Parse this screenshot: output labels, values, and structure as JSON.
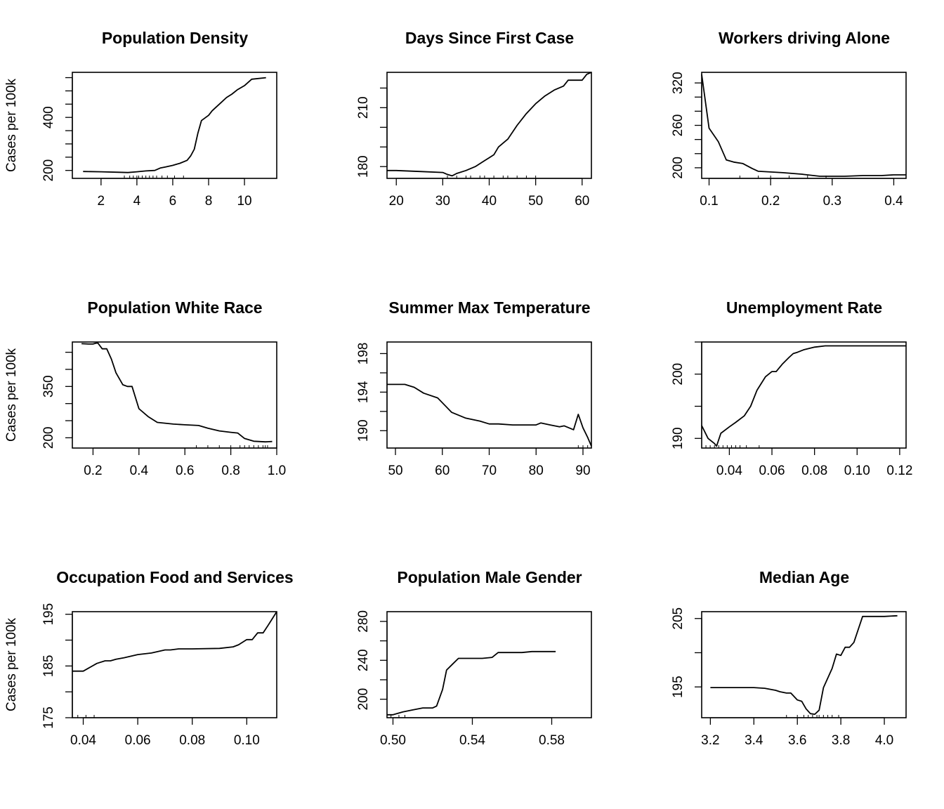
{
  "chart_data": [
    {
      "type": "line",
      "title": "Population Density",
      "ylabel": "Cases per 100k",
      "xlim": [
        0.4,
        11.8
      ],
      "ylim": [
        170,
        570
      ],
      "xticks": [
        2,
        4,
        6,
        8,
        10
      ],
      "yticks": [
        200,
        250,
        300,
        350,
        400,
        450,
        500,
        550
      ],
      "ytick_labels": [
        "200",
        "",
        "",
        "",
        "400",
        "",
        "",
        ""
      ],
      "rug": [
        3.3,
        3.6,
        3.8,
        4.0,
        4.1,
        4.3,
        4.5,
        4.7,
        4.9,
        5.1,
        5.4,
        5.7,
        6.1,
        6.6
      ],
      "series": [
        {
          "x": [
            1.0,
            2.0,
            3.0,
            3.5,
            4.0,
            4.5,
            5.0,
            5.3,
            5.6,
            6.0,
            6.4,
            6.8,
            7.0,
            7.2,
            7.4,
            7.6,
            8.0,
            8.2,
            8.6,
            9.0,
            9.3,
            9.6,
            10.0,
            10.4,
            11.2
          ],
          "y": [
            196,
            195,
            193,
            192,
            195,
            198,
            200,
            209,
            213,
            219,
            227,
            238,
            255,
            280,
            340,
            388,
            408,
            425,
            450,
            475,
            488,
            504,
            520,
            544,
            550
          ]
        }
      ]
    },
    {
      "type": "line",
      "title": "Days Since First Case",
      "ylabel": "",
      "xlim": [
        18,
        62
      ],
      "ylim": [
        174,
        228
      ],
      "xticks": [
        20,
        30,
        40,
        50,
        60
      ],
      "yticks": [
        180,
        190,
        200,
        210,
        220
      ],
      "ytick_labels": [
        "180",
        "",
        "",
        "210",
        ""
      ],
      "rug": [
        31,
        33,
        35,
        36,
        38,
        39,
        41,
        43,
        44,
        46,
        48,
        50
      ],
      "series": [
        {
          "x": [
            18,
            20,
            25,
            30,
            31,
            32,
            33,
            35,
            37,
            39,
            40,
            41,
            42,
            44,
            46,
            48,
            50,
            52,
            54,
            56,
            57,
            59,
            60,
            61,
            62
          ],
          "y": [
            178,
            178,
            177.5,
            177,
            176,
            175.3,
            176.5,
            178,
            180,
            183,
            184.5,
            186,
            190,
            194,
            201,
            207,
            212,
            216,
            219,
            221,
            224,
            224,
            224,
            227,
            228
          ]
        }
      ]
    },
    {
      "type": "line",
      "title": "Workers driving Alone",
      "ylabel": "",
      "xlim": [
        0.088,
        0.42
      ],
      "ylim": [
        185,
        335
      ],
      "xticks": [
        0.1,
        0.2,
        0.3,
        0.4
      ],
      "yticks": [
        200,
        220,
        240,
        260,
        280,
        300,
        320
      ],
      "ytick_labels": [
        "200",
        "",
        "",
        "260",
        "",
        "",
        "320"
      ],
      "rug": [
        0.15,
        0.18,
        0.2,
        0.23,
        0.26,
        0.29
      ],
      "series": [
        {
          "x": [
            0.088,
            0.1,
            0.115,
            0.128,
            0.14,
            0.155,
            0.17,
            0.18,
            0.2,
            0.22,
            0.25,
            0.28,
            0.3,
            0.32,
            0.35,
            0.38,
            0.4,
            0.42
          ],
          "y": [
            332,
            256,
            237,
            211,
            208,
            206,
            199,
            195,
            194,
            193,
            191,
            188,
            188,
            188,
            189,
            189,
            190,
            190
          ]
        }
      ]
    },
    {
      "type": "line",
      "title": "Population White Race",
      "ylabel": "Cases per 100k",
      "xlim": [
        0.11,
        1.0
      ],
      "ylim": [
        170,
        480
      ],
      "xticks": [
        0.2,
        0.4,
        0.6,
        0.8,
        1.0
      ],
      "yticks": [
        200,
        250,
        300,
        350,
        400,
        450
      ],
      "ytick_labels": [
        "200",
        "",
        "",
        "350",
        "",
        ""
      ],
      "rug": [
        0.65,
        0.7,
        0.75,
        0.8,
        0.84,
        0.86,
        0.88,
        0.9,
        0.92,
        0.94,
        0.95,
        0.96
      ],
      "series": [
        {
          "x": [
            0.15,
            0.18,
            0.2,
            0.22,
            0.24,
            0.26,
            0.28,
            0.3,
            0.33,
            0.35,
            0.37,
            0.4,
            0.44,
            0.48,
            0.55,
            0.6,
            0.66,
            0.7,
            0.75,
            0.8,
            0.83,
            0.86,
            0.9,
            0.95,
            0.98
          ],
          "y": [
            475,
            474,
            474,
            478,
            460,
            460,
            430,
            390,
            355,
            350,
            350,
            285,
            262,
            245,
            240,
            238,
            236,
            228,
            220,
            216,
            214,
            198,
            190,
            188,
            189
          ]
        }
      ]
    },
    {
      "type": "line",
      "title": "Summer Max Temperature",
      "ylabel": "",
      "xlim": [
        48.2,
        91.8
      ],
      "ylim": [
        188.2,
        199.2
      ],
      "xticks": [
        50,
        60,
        70,
        80,
        90
      ],
      "yticks": [
        190,
        192,
        194,
        196,
        198
      ],
      "ytick_labels": [
        "190",
        "",
        "194",
        "",
        "198"
      ],
      "rug": [
        89,
        90,
        91
      ],
      "series": [
        {
          "x": [
            48.2,
            52,
            54,
            56,
            59,
            62,
            65,
            68,
            70,
            72,
            75,
            80,
            81,
            83,
            85,
            86,
            87,
            88,
            89,
            90,
            91,
            91.8
          ],
          "y": [
            194.8,
            194.8,
            194.5,
            193.9,
            193.4,
            191.9,
            191.3,
            191.0,
            190.7,
            190.7,
            190.6,
            190.6,
            190.8,
            190.6,
            190.4,
            190.5,
            190.3,
            190.1,
            191.7,
            190.3,
            189.3,
            188.4
          ]
        }
      ]
    },
    {
      "type": "line",
      "title": "Unemployment Rate",
      "ylabel": "",
      "xlim": [
        0.027,
        0.123
      ],
      "ylim": [
        188.5,
        205
      ],
      "xticks": [
        0.04,
        0.06,
        0.08,
        0.1,
        0.12
      ],
      "yticks": [
        190,
        195,
        200,
        205
      ],
      "ytick_labels": [
        "190",
        "",
        "200",
        ""
      ],
      "rug": [
        0.029,
        0.031,
        0.033,
        0.035,
        0.037,
        0.039,
        0.041,
        0.043,
        0.045,
        0.048,
        0.054
      ],
      "series": [
        {
          "x": [
            0.027,
            0.03,
            0.033,
            0.034,
            0.036,
            0.04,
            0.043,
            0.047,
            0.05,
            0.053,
            0.057,
            0.06,
            0.062,
            0.065,
            0.068,
            0.07,
            0.072,
            0.075,
            0.08,
            0.085,
            0.09,
            0.1,
            0.123
          ],
          "y": [
            192,
            190,
            189.2,
            188.8,
            190.8,
            191.8,
            192.5,
            193.5,
            195,
            197.5,
            199.6,
            200.4,
            200.4,
            201.6,
            202.6,
            203.2,
            203.4,
            203.8,
            204.2,
            204.4,
            204.4,
            204.4,
            204.4
          ]
        }
      ]
    },
    {
      "type": "line",
      "title": "Occupation Food and Services",
      "ylabel": "Cases per 100k",
      "xlim": [
        0.036,
        0.111
      ],
      "ylim": [
        175,
        195.5
      ],
      "xticks": [
        0.04,
        0.06,
        0.08,
        0.1
      ],
      "yticks": [
        175,
        180,
        185,
        190,
        195
      ],
      "ytick_labels": [
        "175",
        "",
        "185",
        "",
        "195"
      ],
      "rug": [
        0.038,
        0.041,
        0.044
      ],
      "series": [
        {
          "x": [
            0.036,
            0.04,
            0.045,
            0.048,
            0.05,
            0.052,
            0.055,
            0.06,
            0.065,
            0.07,
            0.072,
            0.075,
            0.08,
            0.09,
            0.095,
            0.097,
            0.1,
            0.102,
            0.104,
            0.106,
            0.108,
            0.111
          ],
          "y": [
            184,
            184,
            185.5,
            186,
            186,
            186.3,
            186.6,
            187.2,
            187.5,
            188.1,
            188.1,
            188.3,
            188.3,
            188.4,
            188.7,
            189.1,
            190.1,
            190.1,
            191.4,
            191.4,
            193.0,
            195.5
          ]
        }
      ]
    },
    {
      "type": "line",
      "title": "Population Male Gender",
      "ylabel": "",
      "xlim": [
        0.497,
        0.6
      ],
      "ylim": [
        181,
        290
      ],
      "xticks": [
        0.5,
        0.54,
        0.58
      ],
      "yticks": [
        200,
        220,
        240,
        260,
        280
      ],
      "ytick_labels": [
        "200",
        "",
        "240",
        "",
        "280"
      ],
      "rug": [
        0.499,
        0.503,
        0.506
      ],
      "series": [
        {
          "x": [
            0.497,
            0.5,
            0.505,
            0.51,
            0.515,
            0.52,
            0.522,
            0.525,
            0.527,
            0.53,
            0.533,
            0.54,
            0.545,
            0.55,
            0.553,
            0.56,
            0.565,
            0.57,
            0.58,
            0.582
          ],
          "y": [
            184,
            184,
            187,
            189,
            191,
            191,
            193,
            210,
            230,
            236,
            242,
            242,
            242,
            243,
            248,
            248,
            248,
            249,
            249,
            249
          ]
        }
      ]
    },
    {
      "type": "line",
      "title": "Median Age",
      "ylabel": "",
      "xlim": [
        3.16,
        4.1
      ],
      "ylim": [
        190.5,
        206
      ],
      "xticks": [
        3.2,
        3.4,
        3.6,
        3.8,
        4.0
      ],
      "yticks": [
        195,
        200,
        205
      ],
      "ytick_labels": [
        "195",
        "",
        "205"
      ],
      "rug": [
        3.55,
        3.6,
        3.63,
        3.65,
        3.67,
        3.69,
        3.7,
        3.72,
        3.74,
        3.76,
        3.79
      ],
      "series": [
        {
          "x": [
            3.2,
            3.3,
            3.4,
            3.45,
            3.5,
            3.52,
            3.55,
            3.57,
            3.6,
            3.62,
            3.64,
            3.66,
            3.68,
            3.7,
            3.72,
            3.76,
            3.78,
            3.8,
            3.82,
            3.84,
            3.86,
            3.9,
            4.0,
            4.06
          ],
          "y": [
            194.9,
            194.9,
            194.9,
            194.8,
            194.5,
            194.3,
            194.1,
            194.1,
            193.1,
            192.9,
            191.8,
            191.1,
            191.0,
            191.6,
            194.9,
            197.7,
            199.8,
            199.6,
            200.8,
            200.8,
            201.5,
            205.3,
            205.3,
            205.4
          ]
        }
      ]
    }
  ]
}
